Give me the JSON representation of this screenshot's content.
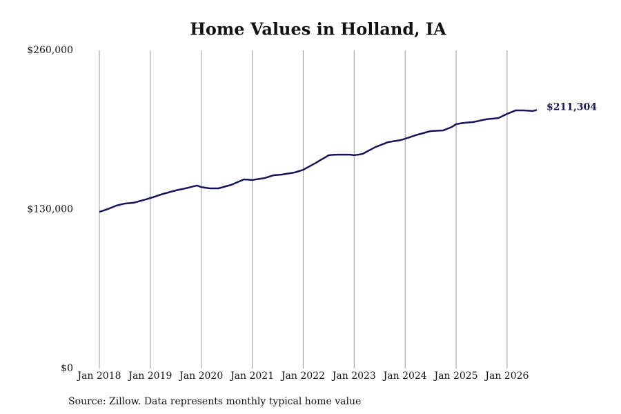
{
  "chart_data": {
    "type": "line",
    "title": "Home Values in Holland, IA",
    "source": "Source: Zillow. Data represents monthly typical home value",
    "x": [
      "2018-01",
      "2018-02",
      "2018-03",
      "2018-04",
      "2018-05",
      "2018-06",
      "2018-07",
      "2018-08",
      "2018-09",
      "2018-10",
      "2018-11",
      "2018-12",
      "2019-01",
      "2019-02",
      "2019-03",
      "2019-04",
      "2019-05",
      "2019-06",
      "2019-07",
      "2019-08",
      "2019-09",
      "2019-10",
      "2019-11",
      "2019-12",
      "2020-01",
      "2020-02",
      "2020-03",
      "2020-04",
      "2020-05",
      "2020-06",
      "2020-07",
      "2020-08",
      "2020-09",
      "2020-10",
      "2020-11",
      "2020-12",
      "2021-01",
      "2021-02",
      "2021-03",
      "2021-04",
      "2021-05",
      "2021-06",
      "2021-07",
      "2021-08",
      "2021-09",
      "2021-10",
      "2021-11",
      "2021-12",
      "2022-01",
      "2022-02",
      "2022-03",
      "2022-04",
      "2022-05",
      "2022-06",
      "2022-07",
      "2022-08",
      "2022-09",
      "2022-10",
      "2022-11",
      "2022-12",
      "2023-01",
      "2023-02",
      "2023-03",
      "2023-04",
      "2023-05",
      "2023-06",
      "2023-07",
      "2023-08",
      "2023-09",
      "2023-10",
      "2023-11",
      "2023-12",
      "2024-01",
      "2024-02",
      "2024-03",
      "2024-04",
      "2024-05",
      "2024-06",
      "2024-07",
      "2024-08",
      "2024-09",
      "2024-10",
      "2024-11",
      "2024-12",
      "2025-01",
      "2025-02",
      "2025-03",
      "2025-04",
      "2025-05",
      "2025-06",
      "2025-07",
      "2025-08",
      "2025-09",
      "2025-10",
      "2025-11",
      "2025-12",
      "2026-01",
      "2026-02",
      "2026-03",
      "2026-04",
      "2026-05",
      "2026-06",
      "2026-07",
      "2026-08"
    ],
    "series": [
      {
        "color": "#14145a",
        "values": [
          128000,
          129100,
          130300,
          131700,
          133100,
          134000,
          134800,
          135100,
          135400,
          136300,
          137300,
          138200,
          139300,
          140400,
          141600,
          142700,
          143600,
          144600,
          145500,
          146300,
          147000,
          147800,
          148700,
          149500,
          148300,
          147700,
          147200,
          147200,
          147200,
          148100,
          149100,
          150000,
          151500,
          153000,
          154500,
          154300,
          154000,
          154600,
          155100,
          155700,
          156800,
          157900,
          158200,
          158500,
          159100,
          159600,
          160200,
          161300,
          162400,
          164300,
          166200,
          168100,
          170200,
          172200,
          174300,
          174600,
          174800,
          174800,
          174800,
          174800,
          174300,
          174800,
          175400,
          177300,
          179100,
          181000,
          182300,
          183700,
          185000,
          185600,
          186100,
          186700,
          187800,
          188900,
          190100,
          191200,
          192100,
          193100,
          194000,
          194200,
          194400,
          194600,
          196000,
          197400,
          199700,
          200300,
          200800,
          201100,
          201400,
          202100,
          202900,
          203600,
          204000,
          204300,
          204700,
          206400,
          208100,
          209500,
          210900,
          210900,
          210900,
          210700,
          210400,
          211304
        ],
        "value_labels": [
          null,
          null,
          null,
          null,
          null,
          null,
          null,
          null,
          null,
          null,
          null,
          null,
          null,
          null,
          null,
          null,
          null,
          null,
          null,
          null,
          null,
          null,
          null,
          null,
          null,
          null,
          null,
          null,
          null,
          null,
          null,
          null,
          null,
          null,
          null,
          null,
          null,
          null,
          null,
          null,
          null,
          null,
          null,
          null,
          null,
          null,
          null,
          null,
          null,
          null,
          null,
          null,
          null,
          null,
          null,
          null,
          null,
          null,
          null,
          null,
          null,
          null,
          null,
          null,
          null,
          null,
          null,
          null,
          null,
          null,
          null,
          null,
          null,
          null,
          null,
          null,
          null,
          null,
          null,
          null,
          null,
          null,
          null,
          null,
          null,
          null,
          null,
          null,
          null,
          null,
          null,
          null,
          null,
          null,
          null,
          null,
          null,
          null,
          null,
          null,
          null,
          null,
          null,
          "$211,304"
        ]
      }
    ],
    "xlim": [
      "2018-01",
      "2026-08"
    ],
    "xticks": [
      {
        "value": "2018-01",
        "label": "Jan 2018"
      },
      {
        "value": "2019-01",
        "label": "Jan 2019"
      },
      {
        "value": "2020-01",
        "label": "Jan 2020"
      },
      {
        "value": "2021-01",
        "label": "Jan 2021"
      },
      {
        "value": "2022-01",
        "label": "Jan 2022"
      },
      {
        "value": "2023-01",
        "label": "Jan 2023"
      },
      {
        "value": "2024-01",
        "label": "Jan 2024"
      },
      {
        "value": "2025-01",
        "label": "Jan 2025"
      },
      {
        "value": "2026-01",
        "label": "Jan 2026"
      }
    ],
    "ylim": [
      0,
      260000
    ],
    "yticks": [
      {
        "value": 0,
        "label": "$0"
      },
      {
        "value": 130000,
        "label": "$130,000"
      },
      {
        "value": 260000,
        "label": "$260,000"
      }
    ],
    "grid": "x"
  }
}
